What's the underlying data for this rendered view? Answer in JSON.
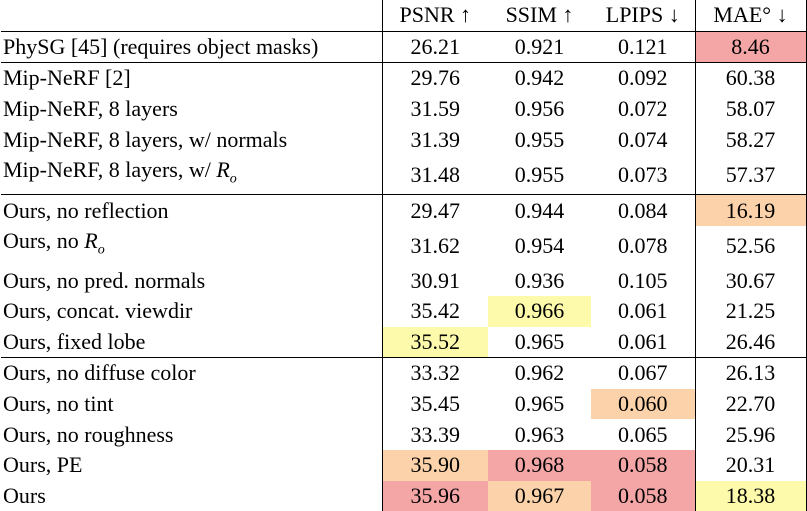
{
  "headers": [
    "",
    "PSNR ↑",
    "SSIM ↑",
    "LPIPS ↓",
    "MAE° ↓"
  ],
  "highlight_colors": {
    "first": "#f4a6a6",
    "second": "#fbd2a9",
    "third": "#fdfbab"
  },
  "rows": [
    {
      "method": "PhySG [45] (requires object masks)",
      "values": [
        "26.21",
        "0.921",
        "0.121",
        "8.46"
      ],
      "hl": [
        null,
        null,
        null,
        "first"
      ],
      "group_start": true
    },
    {
      "method": "Mip-NeRF [2]",
      "values": [
        "29.76",
        "0.942",
        "0.092",
        "60.38"
      ],
      "hl": [
        null,
        null,
        null,
        null
      ],
      "group_start": true
    },
    {
      "method": "Mip-NeRF, 8 layers",
      "values": [
        "31.59",
        "0.956",
        "0.072",
        "58.07"
      ],
      "hl": [
        null,
        null,
        null,
        null
      ]
    },
    {
      "method": "Mip-NeRF, 8 layers, w/ normals",
      "values": [
        "31.39",
        "0.955",
        "0.074",
        "58.27"
      ],
      "hl": [
        null,
        null,
        null,
        null
      ]
    },
    {
      "method": "Mip-NeRF, 8 layers, w/ ",
      "method_math": "R",
      "method_sub": "o",
      "values": [
        "31.48",
        "0.955",
        "0.073",
        "57.37"
      ],
      "hl": [
        null,
        null,
        null,
        null
      ]
    },
    {
      "method": "Ours, no reflection",
      "values": [
        "29.47",
        "0.944",
        "0.084",
        "16.19"
      ],
      "hl": [
        null,
        null,
        null,
        "second"
      ],
      "group_start": true
    },
    {
      "method": "Ours, no ",
      "method_math": "R",
      "method_sub": "o",
      "values": [
        "31.62",
        "0.954",
        "0.078",
        "52.56"
      ],
      "hl": [
        null,
        null,
        null,
        null
      ]
    },
    {
      "method": "Ours, no pred. normals",
      "values": [
        "30.91",
        "0.936",
        "0.105",
        "30.67"
      ],
      "hl": [
        null,
        null,
        null,
        null
      ]
    },
    {
      "method": "Ours, concat. viewdir",
      "values": [
        "35.42",
        "0.966",
        "0.061",
        "21.25"
      ],
      "hl": [
        null,
        "third",
        null,
        null
      ]
    },
    {
      "method": "Ours, fixed lobe",
      "values": [
        "35.52",
        "0.965",
        "0.061",
        "26.46"
      ],
      "hl": [
        "third",
        null,
        null,
        null
      ]
    },
    {
      "method": "Ours, no diffuse color",
      "values": [
        "33.32",
        "0.962",
        "0.067",
        "26.13"
      ],
      "hl": [
        null,
        null,
        null,
        null
      ],
      "group_start": true
    },
    {
      "method": "Ours, no tint",
      "values": [
        "35.45",
        "0.965",
        "0.060",
        "22.70"
      ],
      "hl": [
        null,
        null,
        "second",
        null
      ]
    },
    {
      "method": "Ours, no roughness",
      "values": [
        "33.39",
        "0.963",
        "0.065",
        "25.96"
      ],
      "hl": [
        null,
        null,
        null,
        null
      ]
    },
    {
      "method": "Ours, PE",
      "values": [
        "35.90",
        "0.968",
        "0.058",
        "20.31"
      ],
      "hl": [
        "second",
        "first",
        "first",
        null
      ]
    },
    {
      "method": "Ours",
      "values": [
        "35.96",
        "0.967",
        "0.058",
        "18.38"
      ],
      "hl": [
        "first",
        "second",
        "first",
        "third"
      ]
    }
  ]
}
